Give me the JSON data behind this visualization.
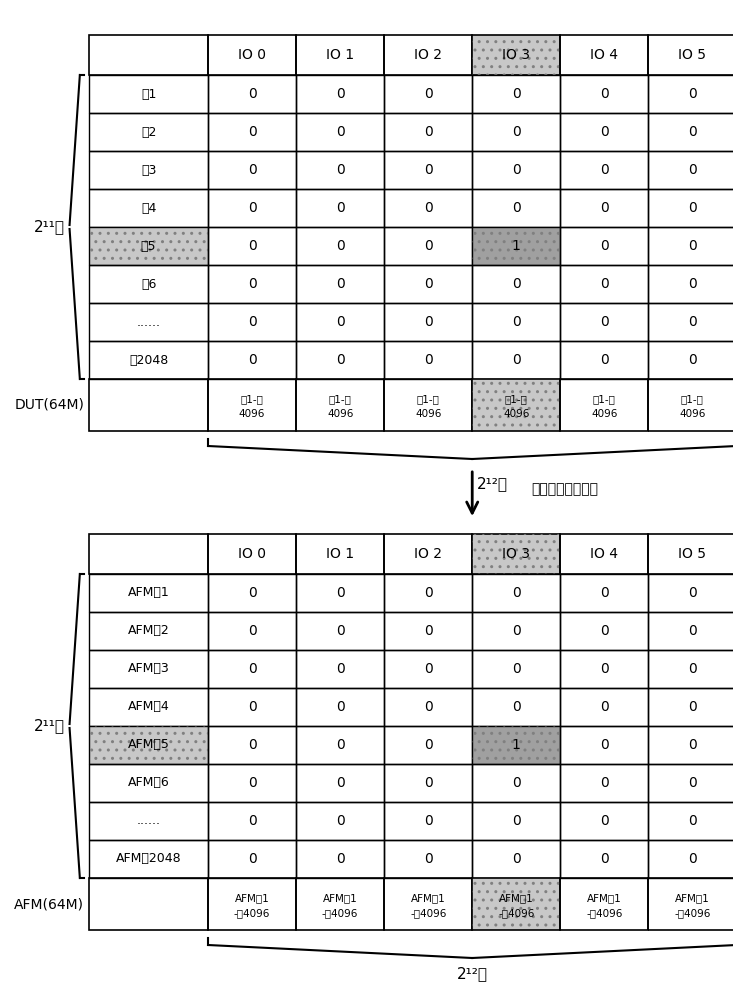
{
  "top_table": {
    "col_headers": [
      "",
      "IO 0",
      "IO 1",
      "IO 2",
      "IO 3",
      "IO 4",
      "IO 5"
    ],
    "rows": [
      [
        "行1",
        "0",
        "0",
        "0",
        "0",
        "0",
        "0"
      ],
      [
        "行2",
        "0",
        "0",
        "0",
        "0",
        "0",
        "0"
      ],
      [
        "行3",
        "0",
        "0",
        "0",
        "0",
        "0",
        "0"
      ],
      [
        "行4",
        "0",
        "0",
        "0",
        "0",
        "0",
        "0"
      ],
      [
        "行5",
        "0",
        "0",
        "0",
        "1",
        "0",
        "0"
      ],
      [
        "行6",
        "0",
        "0",
        "0",
        "0",
        "0",
        "0"
      ],
      [
        "......",
        "0",
        "0",
        "0",
        "0",
        "0",
        "0"
      ],
      [
        "行2048",
        "0",
        "0",
        "0",
        "0",
        "0",
        "0"
      ]
    ],
    "footer_row1": [
      "",
      "列1-列",
      "列1-列",
      "列1-列",
      "列1-列",
      "列1-列",
      "列1-列"
    ],
    "footer_row2": [
      "",
      "4096",
      "4096",
      "4096",
      "4096",
      "4096",
      "4096"
    ],
    "left_label": "2¹¹行",
    "bottom_label": "DUT(64M)",
    "bracket_label": "2¹²列",
    "highlighted_col": 4,
    "highlighted_row": 5,
    "dotted_col_header": 4,
    "dotted_footer_col": 4
  },
  "bottom_table": {
    "col_headers": [
      "",
      "IO 0",
      "IO 1",
      "IO 2",
      "IO 3",
      "IO 4",
      "IO 5"
    ],
    "rows": [
      [
        "AFM行1",
        "0",
        "0",
        "0",
        "0",
        "0",
        "0"
      ],
      [
        "AFM行2",
        "0",
        "0",
        "0",
        "0",
        "0",
        "0"
      ],
      [
        "AFM行3",
        "0",
        "0",
        "0",
        "0",
        "0",
        "0"
      ],
      [
        "AFM行4",
        "0",
        "0",
        "0",
        "0",
        "0",
        "0"
      ],
      [
        "AFM行5",
        "0",
        "0",
        "0",
        "1",
        "0",
        "0"
      ],
      [
        "AFM行6",
        "0",
        "0",
        "0",
        "0",
        "0",
        "0"
      ],
      [
        "......",
        "0",
        "0",
        "0",
        "0",
        "0",
        "0"
      ],
      [
        "AFM行2048",
        "0",
        "0",
        "0",
        "0",
        "0",
        "0"
      ]
    ],
    "footer_row1": [
      "",
      "AFM列1",
      "AFM列1",
      "AFM列1",
      "AFM列1",
      "AFM列1",
      "AFM列1"
    ],
    "footer_row2": [
      "",
      "-列4096",
      "-列4096",
      "-列4096",
      "-列4096",
      "-列4096",
      "-列4096"
    ],
    "left_label": "2¹¹行",
    "bottom_label": "AFM(64M)",
    "bracket_label": "2¹²列",
    "highlighted_col": 4,
    "highlighted_row": 5,
    "dotted_col_header": 4,
    "dotted_footer_col": 4
  },
  "middle_text": "比特地址一一对应",
  "arrow_label": "2¹²列",
  "bg_color": "#ffffff",
  "text_color": "#000000",
  "dotted_fill": "#c8c8c8",
  "highlight_fill": "#a0a0a0"
}
